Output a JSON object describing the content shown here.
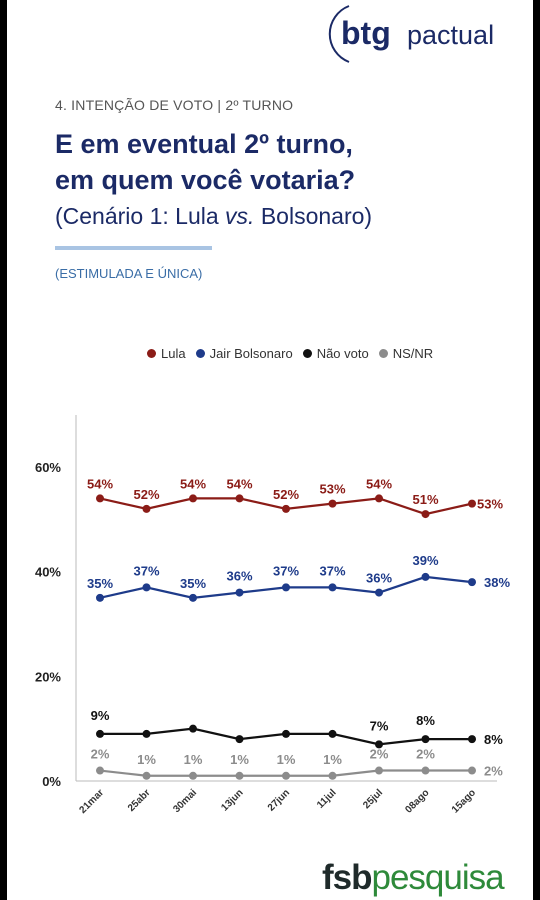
{
  "header": {
    "logo_primary": "btg",
    "logo_secondary": "pactual",
    "section": "4. INTENÇÃO DE VOTO | 2º TURNO",
    "title_line1": "E em eventual 2º turno,",
    "title_line2": "em quem você votaria?",
    "scenario_prefix": "(Cenário 1: Lula ",
    "scenario_vs": "vs.",
    "scenario_suffix": " Bolsonaro)",
    "stimulus": "(ESTIMULADA E ÚNICA)"
  },
  "footer": {
    "brand_bold": "fsb",
    "brand_light": "pesquisa"
  },
  "colors": {
    "lula": "#8b1c17",
    "bolsonaro": "#1e3b8a",
    "nao_voto": "#111111",
    "ns_nr": "#8c8c8c",
    "brand_navy": "#1b2a66"
  },
  "chart_data": {
    "type": "line",
    "categories": [
      "21mar",
      "25abr",
      "30mai",
      "13jun",
      "27jun",
      "11jul",
      "25jul",
      "08ago",
      "15ago"
    ],
    "series": [
      {
        "name": "Lula",
        "values": [
          54,
          52,
          54,
          54,
          52,
          53,
          54,
          51,
          53
        ],
        "color": "#8b1c17"
      },
      {
        "name": "Jair Bolsonaro",
        "values": [
          35,
          37,
          35,
          36,
          37,
          37,
          36,
          39,
          38
        ],
        "color": "#1e3b8a"
      },
      {
        "name": "Não voto",
        "values": [
          9,
          9,
          10,
          8,
          9,
          9,
          7,
          8,
          8
        ],
        "color": "#111111",
        "labels": [
          "9%",
          "",
          "",
          "",
          "",
          "",
          "7%",
          "8%",
          "8%"
        ]
      },
      {
        "name": "NS/NR",
        "values": [
          2,
          1,
          1,
          1,
          1,
          1,
          2,
          2,
          2
        ],
        "color": "#8c8c8c"
      }
    ],
    "yticks": [
      "0%",
      "20%",
      "40%",
      "60%"
    ],
    "ylim": [
      0,
      60
    ],
    "legend_position": "top",
    "grid": false
  }
}
